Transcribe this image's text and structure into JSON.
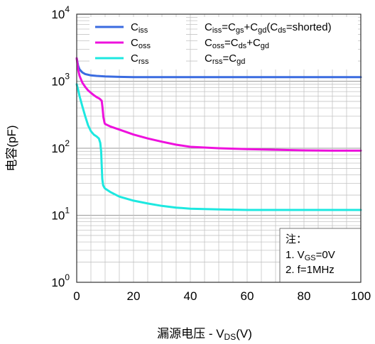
{
  "chart_data": {
    "type": "line",
    "title": "",
    "xlabel": "漏源电压 - V_DS(V)",
    "ylabel": "电容(pF)",
    "x_scale": "linear",
    "y_scale": "log",
    "xlim": [
      0,
      100
    ],
    "ylim": [
      1,
      10000
    ],
    "x_ticks": [
      "0",
      "20",
      "40",
      "60",
      "80",
      "100"
    ],
    "y_ticks": [
      {
        "base": "10",
        "exp": "0"
      },
      {
        "base": "10",
        "exp": "1"
      },
      {
        "base": "10",
        "exp": "2"
      },
      {
        "base": "10",
        "exp": "3"
      },
      {
        "base": "10",
        "exp": "4"
      }
    ],
    "grid": true,
    "legend_position": "top-left",
    "series": [
      {
        "name": "Ciss",
        "color": "#3a6be0",
        "points": [
          [
            0,
            2200
          ],
          [
            0.5,
            1700
          ],
          [
            1,
            1500
          ],
          [
            2,
            1350
          ],
          [
            3,
            1280
          ],
          [
            5,
            1220
          ],
          [
            7,
            1200
          ],
          [
            10,
            1180
          ],
          [
            15,
            1160
          ],
          [
            20,
            1150
          ],
          [
            30,
            1150
          ],
          [
            40,
            1150
          ],
          [
            60,
            1150
          ],
          [
            80,
            1150
          ],
          [
            100,
            1150
          ]
        ]
      },
      {
        "name": "Coss",
        "color": "#ee11dd",
        "points": [
          [
            0,
            2200
          ],
          [
            0.5,
            1500
          ],
          [
            1,
            1200
          ],
          [
            2,
            950
          ],
          [
            3,
            820
          ],
          [
            4,
            730
          ],
          [
            5,
            670
          ],
          [
            6,
            620
          ],
          [
            7,
            580
          ],
          [
            8,
            550
          ],
          [
            8.8,
            510
          ],
          [
            9.1,
            400
          ],
          [
            9.4,
            290
          ],
          [
            9.8,
            240
          ],
          [
            10,
            230
          ],
          [
            12,
            210
          ],
          [
            15,
            190
          ],
          [
            20,
            160
          ],
          [
            25,
            140
          ],
          [
            30,
            125
          ],
          [
            35,
            113
          ],
          [
            40,
            105
          ],
          [
            50,
            100
          ],
          [
            60,
            97
          ],
          [
            70,
            95
          ],
          [
            80,
            93
          ],
          [
            90,
            92
          ],
          [
            100,
            92
          ]
        ]
      },
      {
        "name": "Crss",
        "color": "#1de8e0",
        "points": [
          [
            0,
            900
          ],
          [
            0.5,
            750
          ],
          [
            1,
            600
          ],
          [
            2,
            420
          ],
          [
            3,
            300
          ],
          [
            4,
            220
          ],
          [
            5,
            180
          ],
          [
            6,
            160
          ],
          [
            7,
            150
          ],
          [
            7.8,
            140
          ],
          [
            8.3,
            120
          ],
          [
            8.6,
            90
          ],
          [
            8.8,
            55
          ],
          [
            9,
            35
          ],
          [
            9.3,
            28
          ],
          [
            9.7,
            26
          ],
          [
            10,
            25
          ],
          [
            12,
            22
          ],
          [
            15,
            19
          ],
          [
            20,
            16.5
          ],
          [
            25,
            15
          ],
          [
            30,
            13.8
          ],
          [
            35,
            13
          ],
          [
            40,
            12.5
          ],
          [
            50,
            12.2
          ],
          [
            60,
            12
          ],
          [
            70,
            12
          ],
          [
            80,
            12
          ],
          [
            90,
            12
          ],
          [
            100,
            12
          ]
        ]
      }
    ],
    "legend_entries": [
      {
        "name": "C",
        "sub": "iss",
        "color": "#3a6be0"
      },
      {
        "name": "C",
        "sub": "oss",
        "color": "#ee11dd"
      },
      {
        "name": "C",
        "sub": "rss",
        "color": "#1de8e0"
      }
    ],
    "formulas": [
      [
        [
          "C",
          ""
        ],
        [
          "iss",
          "sub"
        ],
        [
          "=C",
          ""
        ],
        [
          "gs",
          "sub"
        ],
        [
          "+C",
          ""
        ],
        [
          "gd",
          "sub"
        ],
        [
          "(C",
          ""
        ],
        [
          "ds",
          "sub"
        ],
        [
          "=shorted)",
          ""
        ]
      ],
      [
        [
          "C",
          ""
        ],
        [
          "oss",
          "sub"
        ],
        [
          "=C",
          ""
        ],
        [
          "ds",
          "sub"
        ],
        [
          "+C",
          ""
        ],
        [
          "gd",
          "sub"
        ]
      ],
      [
        [
          "C",
          ""
        ],
        [
          "rss",
          "sub"
        ],
        [
          "=C",
          ""
        ],
        [
          "gd",
          "sub"
        ]
      ]
    ],
    "notes": {
      "title": "注：",
      "lines": [
        [
          [
            "1. V",
            ""
          ],
          [
            "GS",
            "sub"
          ],
          [
            "=0V",
            ""
          ]
        ],
        [
          [
            "2. f=1MHz",
            ""
          ]
        ]
      ]
    },
    "xlabel_parts": [
      [
        "漏源电压 - V",
        ""
      ],
      [
        "DS",
        "sub"
      ],
      [
        "(V)",
        ""
      ]
    ]
  }
}
